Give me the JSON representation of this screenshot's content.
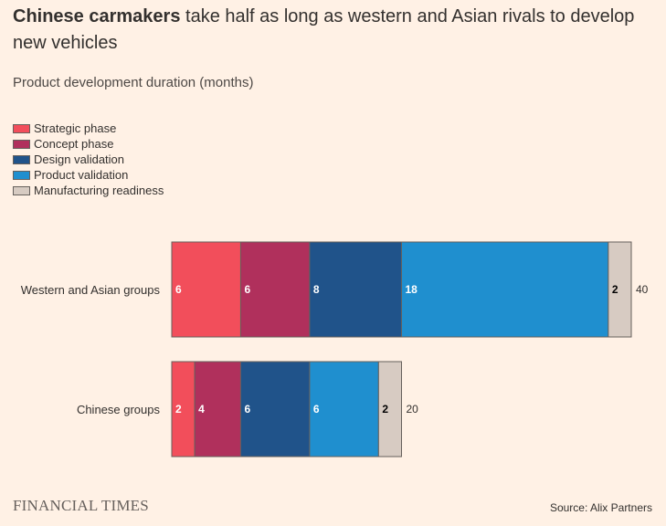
{
  "title_bold": "Chinese carmakers",
  "title_rest": " take half as long as western and Asian rivals to develop new vehicles",
  "subtitle": "Product development duration (months)",
  "source": "Source: Alix Partners",
  "logo": "FINANCIAL TIMES",
  "chart_data": {
    "type": "bar",
    "orientation": "horizontal",
    "stacked": true,
    "categories": [
      "Western and Asian groups",
      "Chinese groups"
    ],
    "series": [
      {
        "name": "Strategic phase",
        "color": "#f24e5b",
        "values": [
          6,
          2
        ]
      },
      {
        "name": "Concept phase",
        "color": "#b0305c",
        "values": [
          6,
          4
        ]
      },
      {
        "name": "Design validation",
        "color": "#20538a",
        "values": [
          8,
          6
        ]
      },
      {
        "name": "Product validation",
        "color": "#1f8fcf",
        "values": [
          18,
          6
        ]
      },
      {
        "name": "Manufacturing readiness",
        "color": "#d7cbc2",
        "values": [
          2,
          2
        ]
      }
    ],
    "totals": [
      40,
      20
    ],
    "xlim": [
      0,
      40
    ],
    "legend_position": "top-left",
    "grid": false
  }
}
